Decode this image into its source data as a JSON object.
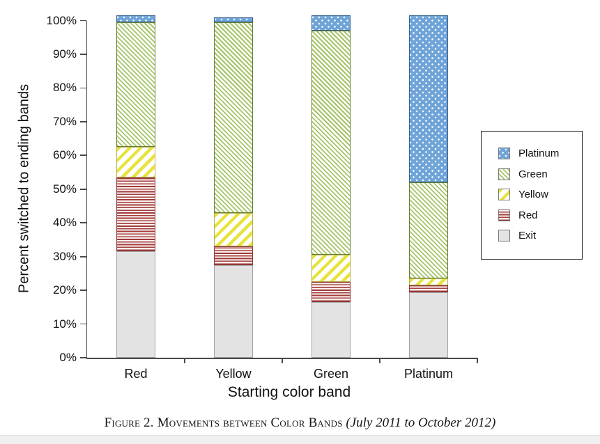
{
  "caption": {
    "smallcaps": "Figure 2. Movements between Color Bands",
    "italic": "(July 2011 to October 2012)"
  },
  "chart_data": {
    "type": "bar",
    "stacked": true,
    "units": "percent",
    "title": "Figure 2. Movements between Color Bands (July 2011 to October 2012)",
    "xlabel": "Starting color band",
    "ylabel": "Percent switched to ending bands",
    "categories": [
      "Red",
      "Yellow",
      "Green",
      "Platinum"
    ],
    "stack_order_bottom_to_top": [
      "Exit",
      "Red",
      "Yellow",
      "Green",
      "Platinum"
    ],
    "series": [
      {
        "name": "Exit",
        "pattern": "solid-gray",
        "fill": "#e3e3e3",
        "border": "#a3a3a3",
        "values": [
          31.5,
          27.5,
          16.5,
          19.5
        ]
      },
      {
        "name": "Red",
        "pattern": "horizontal-lines",
        "fill": "#a03c39",
        "border": "#8e3835",
        "values": [
          22,
          5.5,
          6,
          2
        ]
      },
      {
        "name": "Yellow",
        "pattern": "diagonal-stripes-up",
        "fill": "#e8e33c",
        "border": "#b5ae4e",
        "values": [
          9,
          10,
          8,
          2
        ]
      },
      {
        "name": "Green",
        "pattern": "diagonal-stripes-down",
        "fill": "#a6c468",
        "border": "#647e35",
        "values": [
          37,
          56.5,
          66.5,
          28.5
        ]
      },
      {
        "name": "Platinum",
        "pattern": "white-dots-on-blue",
        "fill": "#6fa4d8",
        "border": "#376092",
        "values": [
          2,
          1.5,
          4.5,
          49.5
        ]
      }
    ],
    "y_ticks": [
      "0%",
      "10%",
      "20%",
      "30%",
      "40%",
      "50%",
      "60%",
      "70%",
      "80%",
      "90%",
      "100%"
    ],
    "ylim": [
      0,
      100
    ],
    "grid": false,
    "legend": {
      "position": "right",
      "items": [
        "Platinum",
        "Green",
        "Yellow",
        "Red",
        "Exit"
      ]
    }
  }
}
